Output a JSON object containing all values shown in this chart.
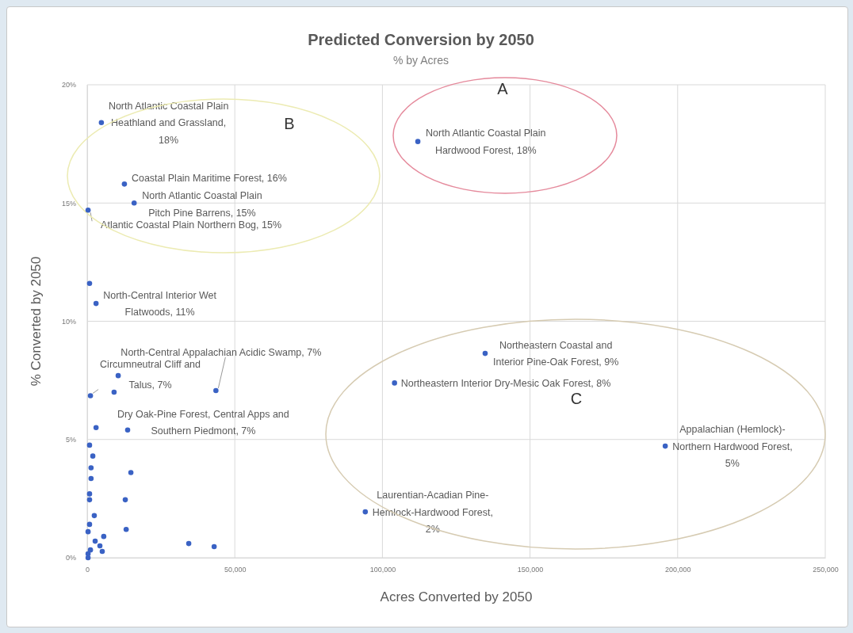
{
  "chart_data": {
    "type": "scatter",
    "title": "Predicted Conversion by 2050",
    "subtitle": "% by Acres",
    "xlabel": "Acres Converted by 2050",
    "ylabel": "% Converted by 2050",
    "xlim": [
      0,
      250000
    ],
    "ylim": [
      0,
      20
    ],
    "xticks": [
      0,
      {
        "value": 50000,
        "label": "50,000"
      },
      {
        "value": 100000,
        "label": "100,000"
      },
      {
        "value": 150000,
        "label": "150,000"
      },
      {
        "value": 200000,
        "label": "200,000"
      },
      {
        "value": 250000,
        "label": "250,000"
      }
    ],
    "yticks": [
      {
        "value": 0,
        "label": "0%"
      },
      {
        "value": 5,
        "label": "5%"
      },
      {
        "value": 10,
        "label": "10%"
      },
      {
        "value": 15,
        "label": "15%"
      },
      {
        "value": 20,
        "label": "20%"
      }
    ],
    "grid": true,
    "marker": "circle",
    "series": [
      {
        "color": "#3a62c4",
        "x": [
          4800,
          12600,
          15900,
          300,
          112000,
          800,
          3000,
          43600,
          1100,
          10500,
          9100,
          13700,
          3000,
          800,
          1900,
          1300,
          1300,
          800,
          800,
          14800,
          12900,
          2400,
          800,
          300,
          13200,
          5600,
          2700,
          4300,
          5100,
          1100,
          300,
          300,
          34400,
          43000,
          134800,
          104100,
          195800,
          94200
        ],
        "values": [
          18.4,
          15.8,
          15.0,
          14.7,
          17.6,
          11.6,
          10.75,
          7.07,
          6.85,
          7.7,
          7.0,
          5.4,
          5.5,
          4.76,
          4.3,
          3.8,
          3.35,
          2.7,
          2.45,
          3.6,
          2.45,
          1.78,
          1.41,
          1.1,
          1.2,
          0.9,
          0.7,
          0.5,
          0.27,
          0.33,
          0.17,
          0,
          0.6,
          0.47,
          8.64,
          7.39,
          4.72,
          1.94
        ]
      }
    ],
    "annotations": [
      {
        "text": "North Atlantic Coastal Plain Heathland and Grassland, 18%",
        "x": 4800,
        "y": 18.4
      },
      {
        "text": "Coastal Plain Maritime Forest, 16%",
        "x": 12600,
        "y": 15.8
      },
      {
        "text": "North Atlantic Coastal Plain Pitch Pine Barrens, 15%",
        "x": 15900,
        "y": 15.0
      },
      {
        "text": "Atlantic Coastal Plain Northern Bog, 15%",
        "x": 300,
        "y": 14.7
      },
      {
        "text": "North Atlantic Coastal Plain Hardwood Forest, 18%",
        "x": 112000,
        "y": 17.6
      },
      {
        "text": "North-Central Interior Wet Flatwoods, 11%",
        "x": 3000,
        "y": 10.75
      },
      {
        "text": "North-Central Appalachian Acidic Swamp, 7%",
        "x": 43600,
        "y": 7.07
      },
      {
        "text": "Circumneutral Cliff and Talus, 7%",
        "x": 1100,
        "y": 6.85
      },
      {
        "text": "Dry Oak-Pine Forest, Central Apps and Southern Piedmont, 7%",
        "x": 13700,
        "y": 5.4
      },
      {
        "text": "Northeastern Coastal and Interior Pine-Oak Forest, 9%",
        "x": 134800,
        "y": 8.64
      },
      {
        "text": "Northeastern Interior Dry-Mesic Oak Forest, 8%",
        "x": 104100,
        "y": 7.39
      },
      {
        "text": "Appalachian (Hemlock)-Northern Hardwood Forest, 5%",
        "x": 195800,
        "y": 4.72
      },
      {
        "text": "Laurentian-Acadian Pine-Hemlock-Hardwood Forest, 2%",
        "x": 94200,
        "y": 1.94
      },
      "A",
      "B",
      "C"
    ]
  }
}
